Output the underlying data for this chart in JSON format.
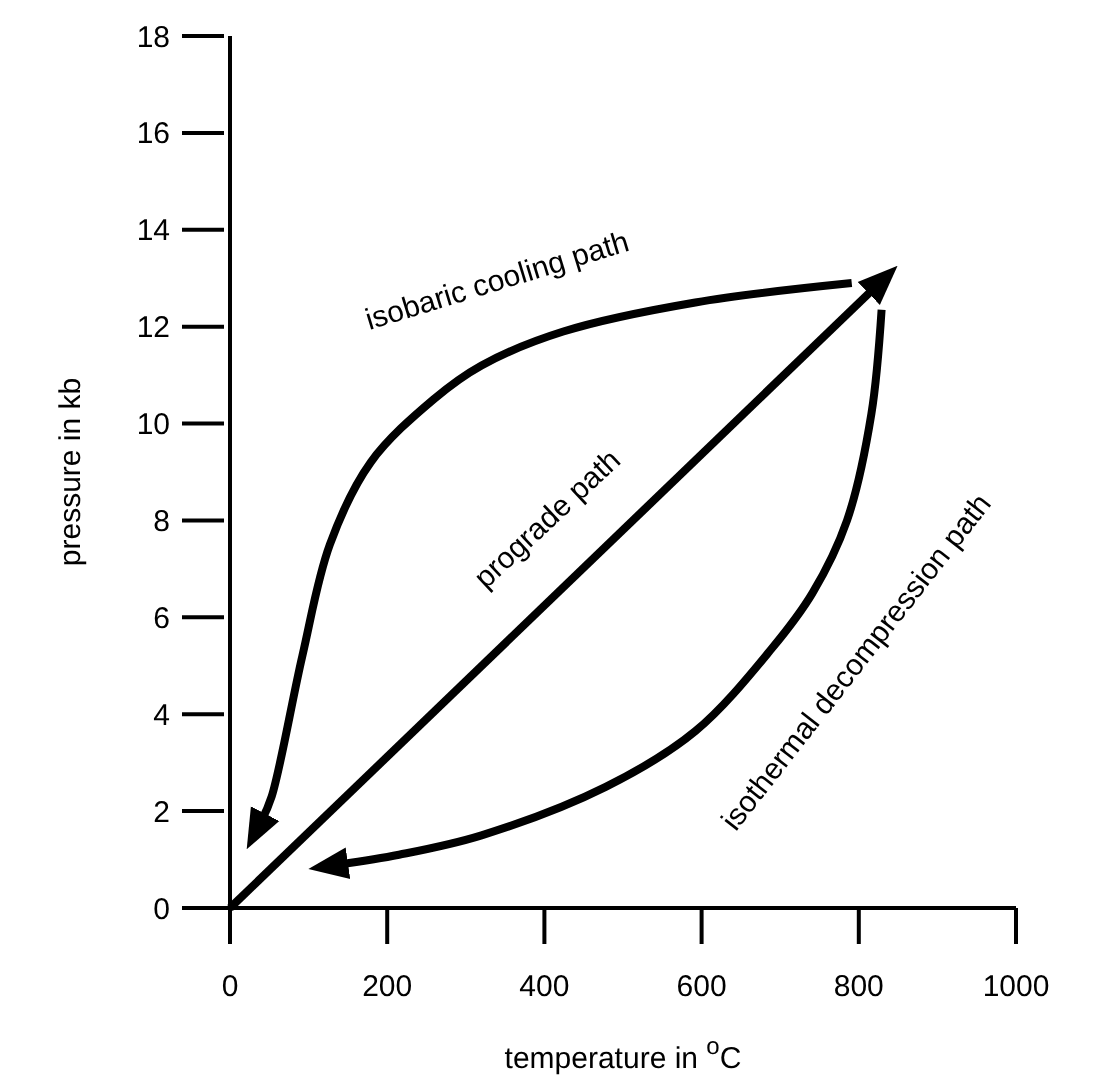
{
  "chart_data": {
    "type": "line",
    "xlabel": "temperature in $^{o}$C",
    "ylabel": "pressure in kb",
    "xlim": [
      0,
      1000
    ],
    "ylim": [
      0,
      18
    ],
    "xticks": [
      0,
      200,
      400,
      600,
      800,
      1000
    ],
    "yticks": [
      0,
      2,
      4,
      6,
      8,
      10,
      12,
      14,
      16,
      18
    ],
    "grid": false,
    "marker": "none",
    "line_style": "solid",
    "series": [
      {
        "color": "#000000",
        "x": [
          0,
          820
        ],
        "values": [
          0,
          12.8
        ]
      },
      {
        "color": "#000000",
        "x": [
          791,
          592,
          424,
          320,
          259,
          179,
          127,
          92,
          53,
          40
        ],
        "values": [
          12.9,
          12.5,
          11.9,
          11.2,
          10.5,
          9.2,
          7.5,
          5.2,
          2.3,
          1.8
        ]
      },
      {
        "color": "#000000",
        "x": [
          829,
          816,
          785,
          741,
          689,
          592,
          478,
          320,
          215,
          140
        ],
        "values": [
          12.35,
          10.2,
          8.0,
          6.5,
          5.35,
          3.65,
          2.5,
          1.5,
          1.1,
          0.9
        ]
      }
    ],
    "annotations": [
      "isobaric cooling path",
      "prograde path",
      "isothermal decompression path"
    ]
  }
}
